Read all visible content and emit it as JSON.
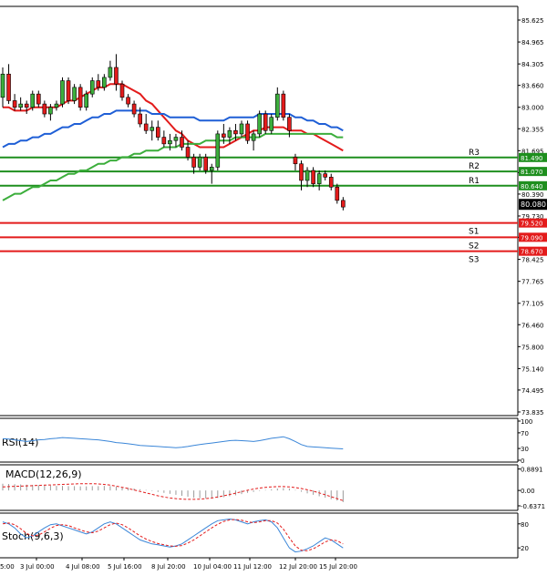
{
  "chart_data": [
    {
      "type": "candlestick",
      "title": "",
      "price_axis_ticks": [
        85.625,
        84.965,
        84.305,
        83.66,
        83.0,
        82.355,
        81.695,
        81.035,
        80.39,
        79.73,
        79.09,
        78.425,
        77.765,
        77.105,
        76.46,
        75.8,
        75.14,
        74.495,
        73.835
      ],
      "ylim": [
        73.835,
        85.625
      ],
      "x_tick_labels": [
        "3 Jul 00:00",
        "4 Jul 08:00",
        "5 Jul 16:00",
        "8 Jul 20:00",
        "10 Jul 04:00",
        "11 Jul 12:00",
        "12 Jul 20:00",
        "15 Jul 20:00"
      ],
      "x_left_edge_label": "5:00",
      "candles": [
        [
          83.3,
          84.2,
          83.0,
          84.0
        ],
        [
          84.0,
          84.3,
          83.1,
          83.2
        ],
        [
          83.2,
          83.4,
          82.9,
          83.0
        ],
        [
          83.0,
          83.3,
          82.9,
          83.1
        ],
        [
          83.1,
          83.2,
          82.8,
          83.0
        ],
        [
          83.0,
          83.5,
          82.9,
          83.4
        ],
        [
          83.4,
          83.5,
          83.0,
          83.1
        ],
        [
          83.1,
          83.2,
          82.7,
          82.8
        ],
        [
          82.8,
          83.1,
          82.6,
          83.0
        ],
        [
          83.0,
          83.2,
          82.9,
          83.1
        ],
        [
          83.1,
          83.9,
          83.0,
          83.8
        ],
        [
          83.8,
          83.9,
          83.1,
          83.2
        ],
        [
          83.2,
          83.7,
          83.1,
          83.6
        ],
        [
          83.6,
          83.7,
          82.9,
          83.0
        ],
        [
          83.0,
          83.5,
          82.9,
          83.4
        ],
        [
          83.4,
          83.9,
          83.3,
          83.8
        ],
        [
          83.8,
          84.0,
          83.5,
          83.6
        ],
        [
          83.6,
          84.0,
          83.5,
          83.9
        ],
        [
          83.9,
          84.4,
          83.8,
          84.2
        ],
        [
          84.2,
          84.6,
          83.5,
          83.7
        ],
        [
          83.7,
          83.8,
          83.2,
          83.3
        ],
        [
          83.3,
          83.4,
          83.0,
          83.1
        ],
        [
          83.1,
          83.2,
          82.7,
          82.8
        ],
        [
          82.8,
          83.0,
          82.4,
          82.5
        ],
        [
          82.5,
          82.8,
          82.2,
          82.3
        ],
        [
          82.3,
          82.6,
          82.0,
          82.4
        ],
        [
          82.4,
          82.6,
          82.0,
          82.1
        ],
        [
          82.1,
          82.3,
          81.8,
          81.9
        ],
        [
          81.9,
          82.2,
          81.7,
          82.0
        ],
        [
          82.0,
          82.2,
          81.8,
          82.1
        ],
        [
          82.1,
          82.3,
          81.7,
          81.8
        ],
        [
          81.8,
          82.0,
          81.4,
          81.5
        ],
        [
          81.5,
          81.6,
          81.0,
          81.2
        ],
        [
          81.2,
          81.6,
          81.1,
          81.5
        ],
        [
          81.5,
          81.6,
          81.0,
          81.1
        ],
        [
          81.1,
          81.3,
          80.7,
          81.2
        ],
        [
          81.2,
          82.3,
          81.1,
          82.2
        ],
        [
          82.2,
          82.5,
          81.9,
          82.1
        ],
        [
          82.1,
          82.4,
          81.9,
          82.3
        ],
        [
          82.3,
          82.5,
          82.0,
          82.2
        ],
        [
          82.2,
          82.6,
          82.1,
          82.5
        ],
        [
          82.5,
          82.6,
          81.9,
          82.0
        ],
        [
          82.0,
          82.3,
          81.7,
          82.2
        ],
        [
          82.2,
          82.9,
          82.1,
          82.8
        ],
        [
          82.8,
          82.9,
          82.2,
          82.3
        ],
        [
          82.3,
          82.8,
          82.2,
          82.7
        ],
        [
          82.7,
          83.6,
          82.6,
          83.4
        ],
        [
          83.4,
          83.5,
          82.6,
          82.7
        ],
        [
          82.7,
          82.8,
          82.1,
          82.3
        ],
        [
          81.5,
          81.6,
          81.1,
          81.3
        ],
        [
          81.3,
          81.4,
          80.5,
          80.8
        ],
        [
          80.8,
          81.2,
          80.6,
          81.1
        ],
        [
          81.1,
          81.2,
          80.6,
          80.7
        ],
        [
          80.7,
          81.1,
          80.5,
          81.0
        ],
        [
          81.0,
          81.1,
          80.8,
          80.9
        ],
        [
          80.9,
          81.0,
          80.5,
          80.6
        ],
        [
          80.6,
          80.7,
          80.1,
          80.2
        ],
        [
          80.2,
          80.3,
          79.9,
          80.0
        ]
      ],
      "levels": [
        {
          "name": "R3",
          "value": 81.49,
          "value_label": "81.490",
          "color": "#1e8f1e"
        },
        {
          "name": "R2",
          "value": 81.07,
          "value_label": "81.070",
          "color": "#1e8f1e"
        },
        {
          "name": "R1",
          "value": 80.64,
          "value_label": "80.640",
          "color": "#1e8f1e"
        },
        {
          "name": "S1",
          "value": 79.52,
          "value_label": "79.520",
          "color": "#e31b1b"
        },
        {
          "name": "S2",
          "value": 79.09,
          "value_label": "79.090",
          "color": "#e31b1b"
        },
        {
          "name": "S3",
          "value": 78.67,
          "value_label": "78.670",
          "color": "#e31b1b"
        }
      ],
      "current_price_label": "80.080",
      "current_price": 80.08,
      "moving_averages": [
        {
          "name": "MA-short",
          "color": "#e31b1b",
          "values": [
            83.0,
            83.0,
            82.9,
            82.9,
            82.9,
            83.0,
            83.0,
            83.0,
            83.0,
            83.0,
            83.1,
            83.2,
            83.2,
            83.3,
            83.4,
            83.5,
            83.6,
            83.6,
            83.7,
            83.7,
            83.7,
            83.6,
            83.5,
            83.4,
            83.2,
            83.1,
            82.9,
            82.7,
            82.5,
            82.3,
            82.2,
            82.0,
            81.9,
            81.8,
            81.8,
            81.8,
            81.8,
            81.8,
            81.9,
            82.0,
            82.1,
            82.2,
            82.3,
            82.3,
            82.4,
            82.4,
            82.4,
            82.4,
            82.3,
            82.3,
            82.3,
            82.2,
            82.2,
            82.1,
            82.0,
            81.9,
            81.8,
            81.7
          ]
        },
        {
          "name": "MA-mid",
          "color": "#1f5fd6",
          "values": [
            81.8,
            81.9,
            81.9,
            82.0,
            82.0,
            82.1,
            82.1,
            82.2,
            82.2,
            82.3,
            82.4,
            82.4,
            82.5,
            82.5,
            82.6,
            82.7,
            82.7,
            82.8,
            82.8,
            82.9,
            82.9,
            82.9,
            82.9,
            82.9,
            82.9,
            82.8,
            82.8,
            82.8,
            82.7,
            82.7,
            82.7,
            82.7,
            82.7,
            82.6,
            82.6,
            82.6,
            82.6,
            82.6,
            82.7,
            82.7,
            82.7,
            82.7,
            82.7,
            82.8,
            82.8,
            82.8,
            82.8,
            82.8,
            82.8,
            82.7,
            82.7,
            82.6,
            82.6,
            82.5,
            82.5,
            82.4,
            82.4,
            82.3
          ]
        },
        {
          "name": "MA-long",
          "color": "#3cae3c",
          "values": [
            80.2,
            80.3,
            80.4,
            80.4,
            80.5,
            80.6,
            80.6,
            80.7,
            80.8,
            80.8,
            80.9,
            81.0,
            81.0,
            81.1,
            81.1,
            81.2,
            81.3,
            81.3,
            81.4,
            81.4,
            81.5,
            81.5,
            81.6,
            81.6,
            81.7,
            81.7,
            81.7,
            81.8,
            81.8,
            81.8,
            81.9,
            81.9,
            81.9,
            81.9,
            82.0,
            82.0,
            82.0,
            82.0,
            82.0,
            82.1,
            82.1,
            82.1,
            82.1,
            82.1,
            82.2,
            82.2,
            82.2,
            82.2,
            82.2,
            82.2,
            82.2,
            82.2,
            82.2,
            82.2,
            82.2,
            82.2,
            82.1,
            82.1
          ]
        }
      ]
    },
    {
      "type": "line",
      "title": "RSI(14)",
      "ticks": [
        "100",
        "70",
        "30",
        "0"
      ],
      "tick_values": [
        100,
        70,
        30,
        0
      ],
      "ylim": [
        0,
        100
      ],
      "values": [
        55,
        54,
        52,
        50,
        48,
        50,
        52,
        53,
        55,
        56,
        58,
        57,
        56,
        55,
        54,
        53,
        52,
        50,
        48,
        45,
        44,
        42,
        40,
        38,
        37,
        36,
        35,
        34,
        33,
        32,
        33,
        35,
        38,
        40,
        42,
        44,
        46,
        48,
        50,
        51,
        50,
        49,
        48,
        50,
        53,
        56,
        58,
        60,
        55,
        48,
        40,
        35,
        34,
        33,
        32,
        31,
        30,
        29
      ]
    },
    {
      "type": "histogram+line",
      "title": "MACD(12,26,9)",
      "ticks": [
        "0.8891",
        "0.00",
        "-0.6371"
      ],
      "tick_values": [
        0.8891,
        0.0,
        -0.6371
      ],
      "ylim": [
        -0.75,
        0.95
      ],
      "histogram": [
        0.28,
        0.27,
        0.26,
        0.25,
        0.24,
        0.23,
        0.22,
        0.21,
        0.2,
        0.19,
        0.19,
        0.18,
        0.18,
        0.17,
        0.17,
        0.18,
        0.18,
        0.19,
        0.18,
        0.16,
        0.14,
        0.11,
        0.08,
        0.05,
        0.02,
        -0.02,
        -0.06,
        -0.1,
        -0.14,
        -0.18,
        -0.22,
        -0.26,
        -0.3,
        -0.32,
        -0.33,
        -0.33,
        -0.31,
        -0.28,
        -0.24,
        -0.2,
        -0.15,
        -0.1,
        -0.06,
        -0.02,
        0.02,
        0.05,
        0.08,
        0.1,
        0.08,
        0.02,
        -0.05,
        -0.12,
        -0.18,
        -0.24,
        -0.3,
        -0.36,
        -0.42,
        -0.48
      ],
      "signal": [
        0.15,
        0.16,
        0.17,
        0.18,
        0.19,
        0.2,
        0.21,
        0.22,
        0.23,
        0.24,
        0.25,
        0.26,
        0.27,
        0.28,
        0.28,
        0.28,
        0.27,
        0.25,
        0.22,
        0.18,
        0.13,
        0.08,
        0.02,
        -0.04,
        -0.1,
        -0.16,
        -0.22,
        -0.27,
        -0.31,
        -0.34,
        -0.36,
        -0.37,
        -0.37,
        -0.36,
        -0.34,
        -0.31,
        -0.27,
        -0.22,
        -0.17,
        -0.11,
        -0.05,
        0.01,
        0.06,
        0.1,
        0.13,
        0.15,
        0.16,
        0.16,
        0.15,
        0.12,
        0.08,
        0.03,
        -0.03,
        -0.1,
        -0.18,
        -0.26,
        -0.34,
        -0.42
      ]
    },
    {
      "type": "line",
      "title": "Stoch(9,6,3)",
      "ticks": [
        "80",
        "20"
      ],
      "tick_values": [
        80,
        20
      ],
      "ylim": [
        0,
        100
      ],
      "k": [
        85,
        80,
        70,
        55,
        45,
        50,
        60,
        70,
        78,
        80,
        75,
        70,
        65,
        60,
        55,
        60,
        70,
        80,
        85,
        80,
        70,
        60,
        50,
        40,
        35,
        30,
        28,
        25,
        22,
        25,
        30,
        40,
        50,
        60,
        70,
        80,
        88,
        90,
        92,
        90,
        85,
        80,
        85,
        88,
        90,
        85,
        70,
        45,
        20,
        10,
        12,
        18,
        25,
        35,
        45,
        40,
        30,
        20
      ],
      "d": [
        80,
        82,
        78,
        68,
        56,
        50,
        52,
        60,
        69,
        76,
        78,
        76,
        70,
        65,
        60,
        58,
        62,
        70,
        78,
        82,
        78,
        70,
        60,
        50,
        42,
        36,
        31,
        28,
        25,
        24,
        26,
        32,
        40,
        50,
        60,
        70,
        79,
        86,
        90,
        91,
        89,
        85,
        83,
        85,
        88,
        88,
        82,
        67,
        45,
        25,
        14,
        13,
        18,
        26,
        35,
        40,
        38,
        30
      ]
    }
  ]
}
